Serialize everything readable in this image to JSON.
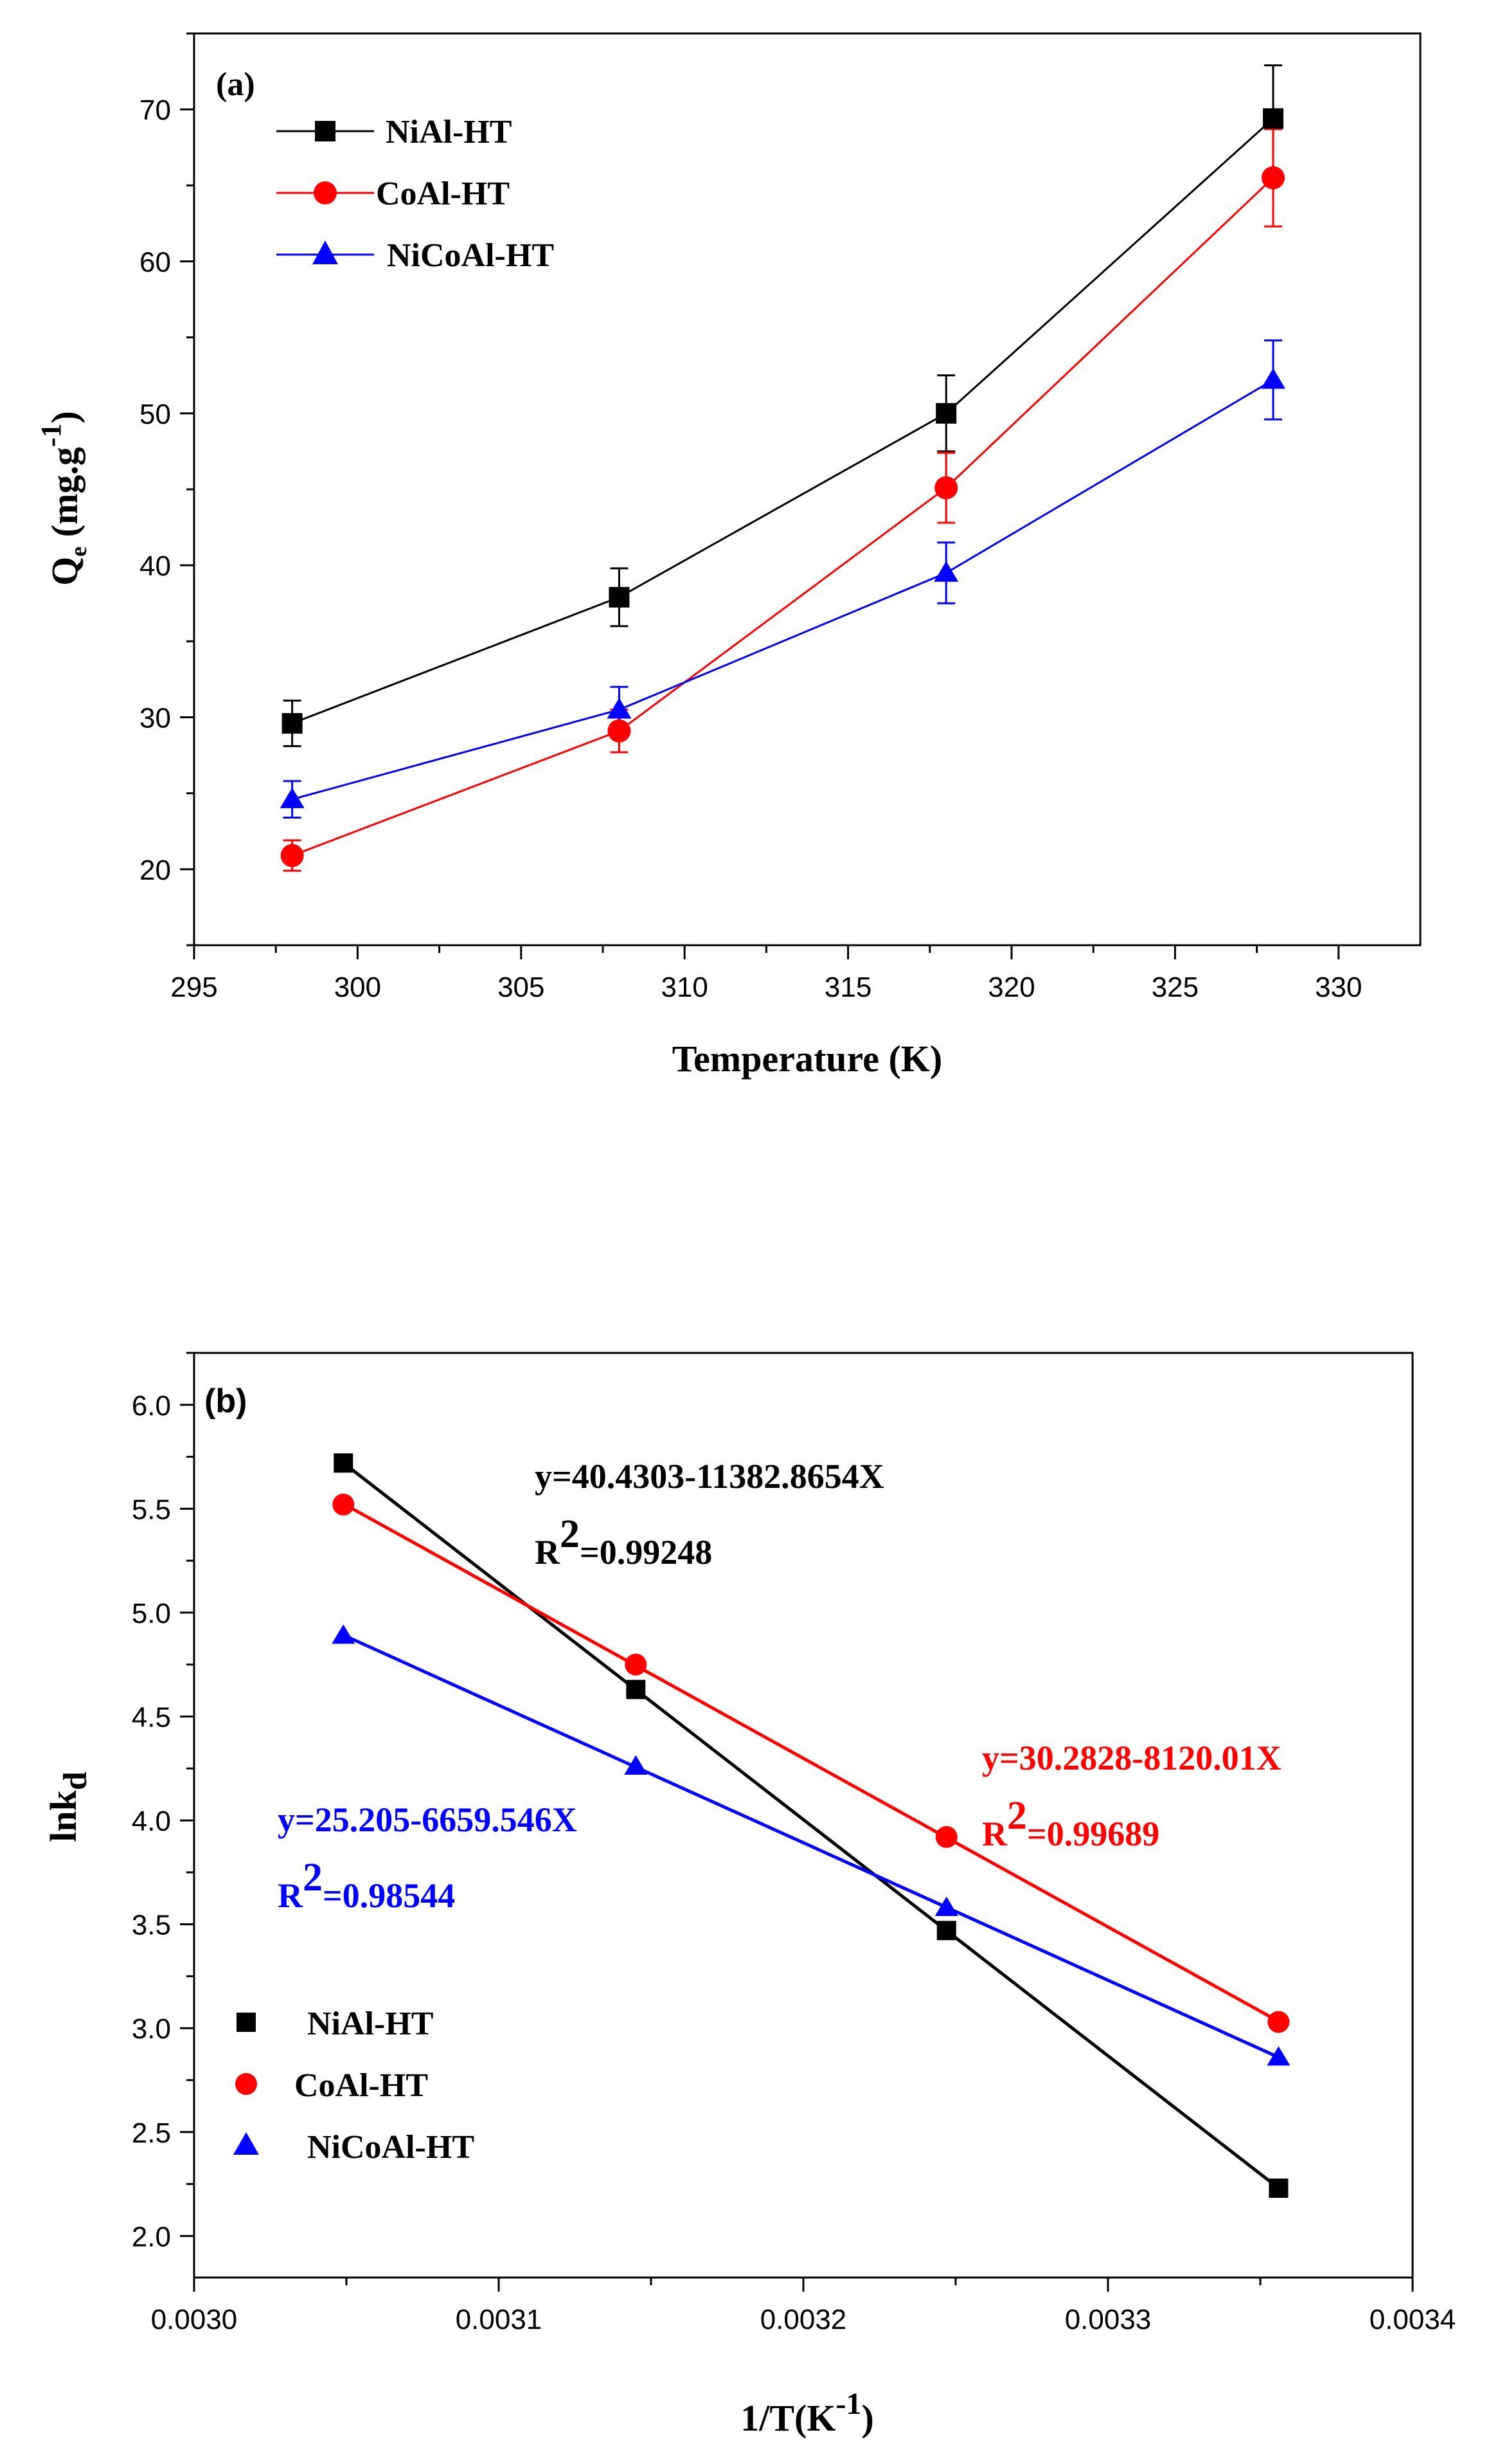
{
  "colors": {
    "niAl": "#000000",
    "coAl": "#ff0000",
    "niCoAl": "#0000ff"
  },
  "chart_data": [
    {
      "panel": "(a)",
      "type": "line",
      "x": [
        298,
        308,
        318,
        328
      ],
      "series": [
        {
          "name": "NiAl-HT",
          "marker": "square",
          "values": [
            29.6,
            37.9,
            50.0,
            69.4
          ],
          "errors": [
            1.5,
            1.9,
            2.5,
            3.5
          ]
        },
        {
          "name": "CoAl-HT",
          "marker": "circle",
          "values": [
            20.9,
            29.1,
            45.1,
            65.5
          ],
          "errors": [
            1.0,
            1.4,
            2.3,
            3.2
          ]
        },
        {
          "name": "NiCoAl-HT",
          "marker": "triangle",
          "values": [
            24.6,
            30.5,
            39.5,
            52.2
          ],
          "errors": [
            1.2,
            1.5,
            2.0,
            2.6
          ]
        }
      ],
      "xlim": [
        295,
        332.5
      ],
      "ylim": [
        15,
        75
      ],
      "xticks": [
        "295",
        "300",
        "305",
        "310",
        "315",
        "320",
        "325",
        "330"
      ],
      "yticks": [
        "20",
        "30",
        "40",
        "50",
        "60",
        "70"
      ],
      "xlabel": "Temperature (K)",
      "ylabel_main": "Q",
      "ylabel_sub": "e",
      "ylabel_unit": " (mg.g",
      "ylabel_sup": "-1",
      "ylabel_close": ")",
      "legend": [
        "NiAl-HT",
        "CoAl-HT",
        "NiCoAl-HT"
      ],
      "legend_position": "top-left"
    },
    {
      "panel": "(b)",
      "type": "scatter",
      "fit_lines": true,
      "x": [
        0.003049,
        0.003145,
        0.003247,
        0.003356
      ],
      "series": [
        {
          "name": "NiAl-HT",
          "marker": "square",
          "values": [
            5.72,
            4.63,
            3.47,
            2.23
          ],
          "equation": "y=40.4303-11382.8654X",
          "r2_label": "R",
          "r2_sup": "2",
          "r2_value": "=0.99248"
        },
        {
          "name": "CoAl-HT",
          "marker": "circle",
          "values": [
            5.52,
            4.75,
            3.92,
            3.03
          ],
          "equation": "y=30.2828-8120.01X",
          "r2_label": "R",
          "r2_sup": "2",
          "r2_value": "=0.99689"
        },
        {
          "name": "NiCoAl-HT",
          "marker": "triangle",
          "values": [
            4.89,
            4.26,
            3.58,
            2.86
          ],
          "equation": "y=25.205-6659.546X",
          "r2_label": "R",
          "r2_sup": "2",
          "r2_value": "=0.98544"
        }
      ],
      "xlim": [
        0.003,
        0.0034
      ],
      "ylim": [
        1.8,
        6.25
      ],
      "xticks": [
        "0.0030",
        "0.0031",
        "0.0032",
        "0.0033",
        "0.0034"
      ],
      "yticks": [
        "2.0",
        "2.5",
        "3.0",
        "3.5",
        "4.0",
        "4.5",
        "5.0",
        "5.5",
        "6.0"
      ],
      "xlabel_main": "1/T(K",
      "xlabel_sup": "-1",
      "xlabel_close": ")",
      "ylabel_main": "lnk",
      "ylabel_sub": "d",
      "legend": [
        "NiAl-HT",
        "CoAl-HT",
        "NiCoAl-HT"
      ],
      "legend_position": "bottom-left"
    }
  ]
}
